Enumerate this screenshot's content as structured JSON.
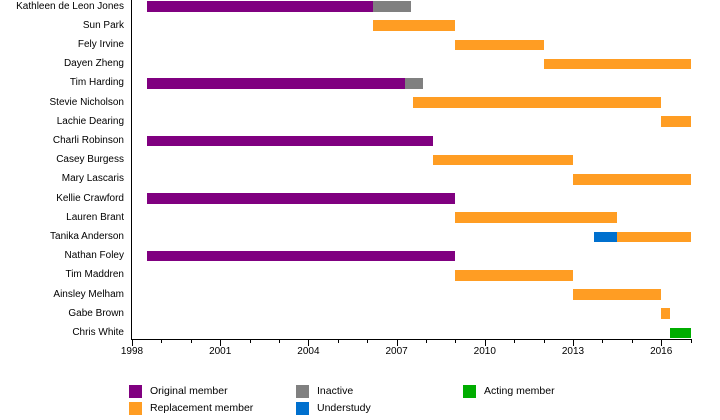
{
  "chart_data": {
    "type": "timeline-gantt",
    "title": "",
    "x_axis": {
      "min": 1998,
      "max": 2017.05,
      "major_ticks": [
        1998,
        2001,
        2004,
        2007,
        2010,
        2013,
        2016
      ],
      "minor_ticks_every_year": true,
      "grid": false
    },
    "rows": [
      {
        "name": "Kathleen de Leon Jones",
        "segments": [
          {
            "type": "original",
            "start": 1998.5,
            "end": 2006.2
          },
          {
            "type": "inactive",
            "start": 2006.2,
            "end": 2007.5
          }
        ]
      },
      {
        "name": "Sun Park",
        "segments": [
          {
            "type": "replacement",
            "start": 2006.2,
            "end": 2009.0
          }
        ]
      },
      {
        "name": "Fely Irvine",
        "segments": [
          {
            "type": "replacement",
            "start": 2009.0,
            "end": 2012.0
          }
        ]
      },
      {
        "name": "Dayen Zheng",
        "segments": [
          {
            "type": "replacement",
            "start": 2012.0,
            "end": 2017.0
          }
        ]
      },
      {
        "name": "Tim Harding",
        "segments": [
          {
            "type": "original",
            "start": 1998.5,
            "end": 2007.3
          },
          {
            "type": "inactive",
            "start": 2007.3,
            "end": 2007.9
          }
        ]
      },
      {
        "name": "Stevie Nicholson",
        "segments": [
          {
            "type": "replacement",
            "start": 2007.55,
            "end": 2016.0
          }
        ]
      },
      {
        "name": "Lachie Dearing",
        "segments": [
          {
            "type": "replacement",
            "start": 2016.0,
            "end": 2017.0
          }
        ]
      },
      {
        "name": "Charli Robinson",
        "segments": [
          {
            "type": "original",
            "start": 1998.5,
            "end": 2008.25
          }
        ]
      },
      {
        "name": "Casey Burgess",
        "segments": [
          {
            "type": "replacement",
            "start": 2008.25,
            "end": 2013.0
          }
        ]
      },
      {
        "name": "Mary Lascaris",
        "segments": [
          {
            "type": "replacement",
            "start": 2013.0,
            "end": 2017.0
          }
        ]
      },
      {
        "name": "Kellie Crawford",
        "segments": [
          {
            "type": "original",
            "start": 1998.5,
            "end": 2009.0
          }
        ]
      },
      {
        "name": "Lauren Brant",
        "segments": [
          {
            "type": "replacement",
            "start": 2009.0,
            "end": 2014.5
          }
        ]
      },
      {
        "name": "Tanika Anderson",
        "segments": [
          {
            "type": "understudy",
            "start": 2013.7,
            "end": 2014.5
          },
          {
            "type": "replacement",
            "start": 2014.5,
            "end": 2017.0
          }
        ]
      },
      {
        "name": "Nathan Foley",
        "segments": [
          {
            "type": "original",
            "start": 1998.5,
            "end": 2009.0
          }
        ]
      },
      {
        "name": "Tim Maddren",
        "segments": [
          {
            "type": "replacement",
            "start": 2009.0,
            "end": 2013.0
          }
        ]
      },
      {
        "name": "Ainsley Melham",
        "segments": [
          {
            "type": "replacement",
            "start": 2013.0,
            "end": 2016.0
          }
        ]
      },
      {
        "name": "Gabe Brown",
        "segments": [
          {
            "type": "replacement",
            "start": 2016.0,
            "end": 2016.3
          }
        ]
      },
      {
        "name": "Chris White",
        "segments": [
          {
            "type": "acting",
            "start": 2016.3,
            "end": 2017.0
          }
        ]
      }
    ],
    "legend": [
      {
        "type": "original",
        "label": "Original member"
      },
      {
        "type": "replacement",
        "label": "Replacement member"
      },
      {
        "type": "inactive",
        "label": "Inactive"
      },
      {
        "type": "understudy",
        "label": "Understudy"
      },
      {
        "type": "acting",
        "label": "Acting member"
      }
    ],
    "colors": {
      "original": "#800080",
      "replacement": "#FF9D23",
      "inactive": "#808080",
      "understudy": "#0070CE",
      "acting": "#00AD00",
      "axis": "#000000",
      "text": "#000000"
    }
  }
}
